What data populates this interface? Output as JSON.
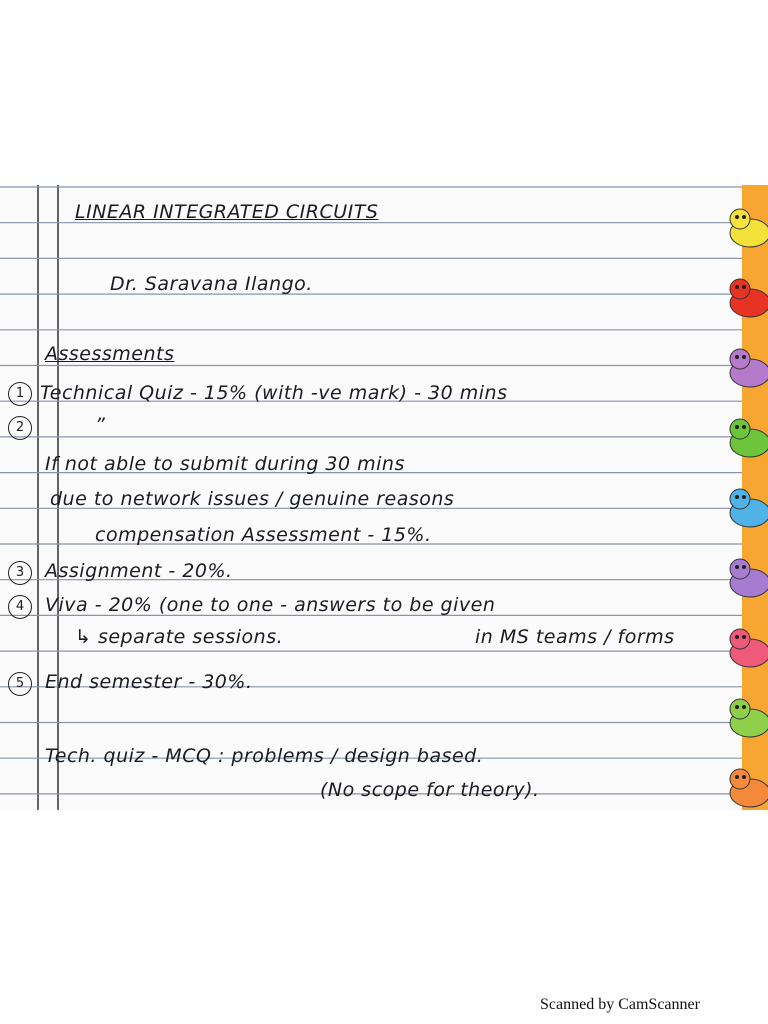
{
  "header": {
    "title": "LINEAR INTEGRATED CIRCUITS",
    "author": "Dr. Saravana Ilango."
  },
  "section": {
    "heading": "Assessments",
    "items": [
      {
        "marker": "1",
        "text": "Technical Quiz - 15% (with -ve mark) - 30 mins"
      },
      {
        "marker": "2",
        "text": "”"
      },
      {
        "marker": "3",
        "text": "Assignment - 20%."
      },
      {
        "marker": "4",
        "text": "Viva - 20% (one to one - answers to be given"
      },
      {
        "marker": "5",
        "text": "End semester - 30%."
      }
    ],
    "note_after_2": [
      "If not able to submit during 30 mins",
      "due to network issues / genuine reasons",
      "compensation Assessment - 15%."
    ],
    "note_after_4": [
      "↳ separate sessions.",
      "in MS teams / forms"
    ],
    "closing": [
      "Tech. quiz - MCQ : problems / design based.",
      "(No scope for theory)."
    ]
  },
  "footer": {
    "text": "Scanned by CamScanner"
  }
}
